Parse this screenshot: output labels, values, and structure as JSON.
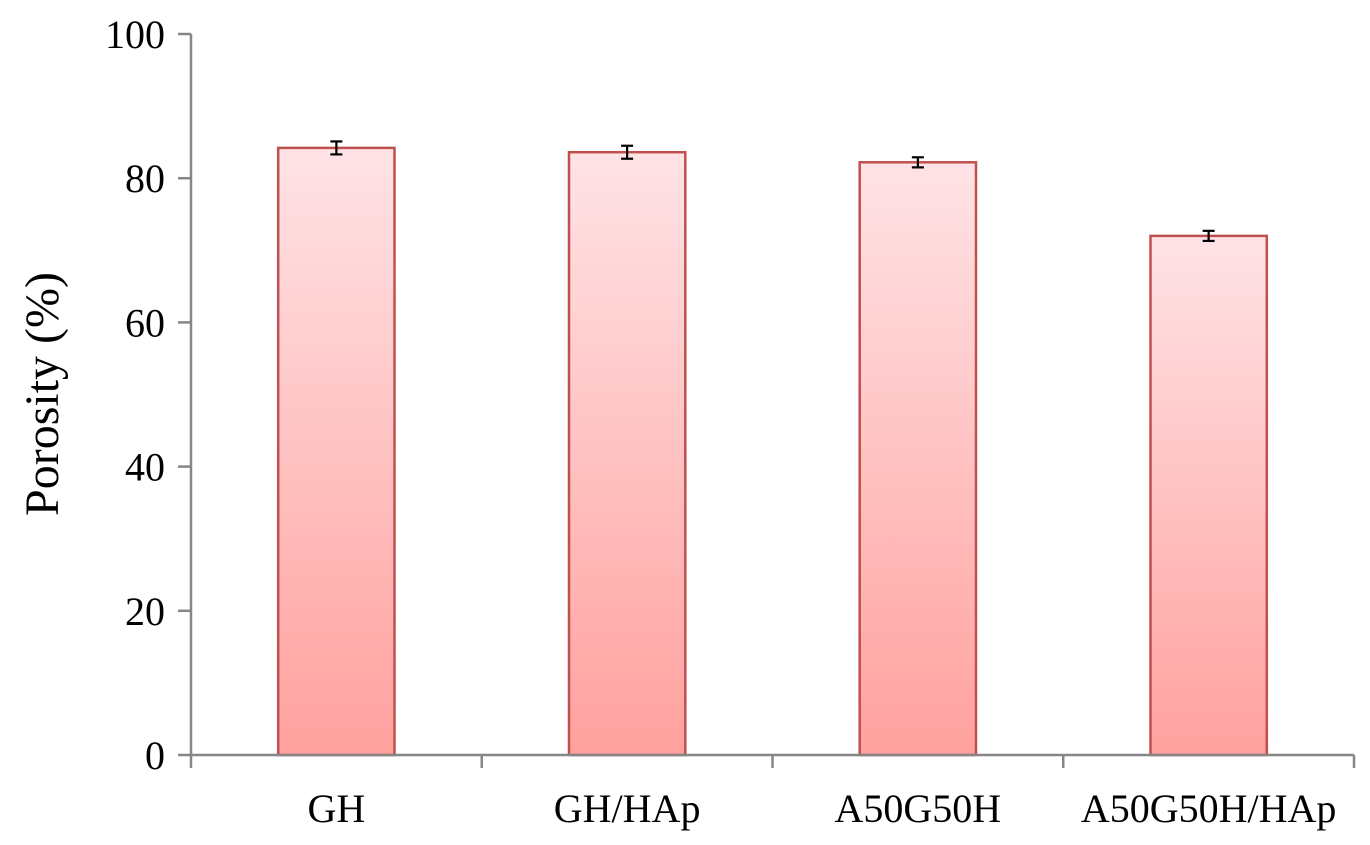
{
  "chart_data": {
    "type": "bar",
    "title": "",
    "xlabel": "",
    "ylabel": "Porosity (%)",
    "categories": [
      "GH",
      "GH/HAp",
      "A50G50H",
      "A50G50H/HAp"
    ],
    "values": [
      84.2,
      83.6,
      82.2,
      72.0
    ],
    "errors": [
      0.9,
      0.9,
      0.7,
      0.7
    ],
    "ylim": [
      0,
      100
    ],
    "yticks": [
      "0",
      "20",
      "40",
      "60",
      "80",
      "100"
    ],
    "grid": false,
    "legend": "none",
    "colors": {
      "bar_fill_top": "#FFE3E6",
      "bar_fill_bottom": "#FFA19E",
      "bar_stroke": "#C0504D",
      "axis": "#868686",
      "error_bar": "#000000"
    }
  }
}
